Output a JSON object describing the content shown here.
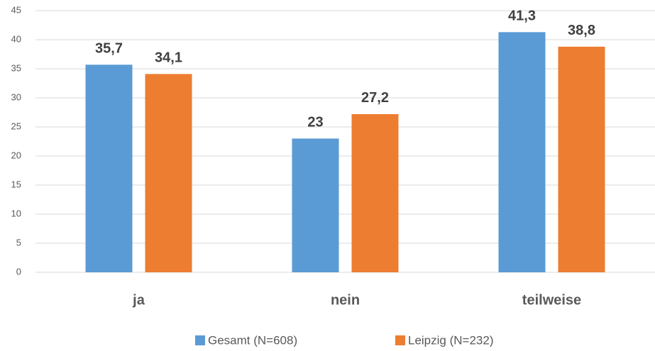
{
  "chart_data": {
    "type": "bar",
    "categories": [
      "ja",
      "nein",
      "teilweise"
    ],
    "series": [
      {
        "name": "Gesamt (N=608)",
        "color": "#5b9bd5",
        "values": [
          35.7,
          23,
          41.3
        ],
        "value_labels": [
          "35,7",
          "23",
          "41,3"
        ]
      },
      {
        "name": "Leipzig (N=232)",
        "color": "#ed7d31",
        "values": [
          34.1,
          27.2,
          38.8
        ],
        "value_labels": [
          "34,1",
          "27,2",
          "38,8"
        ]
      }
    ],
    "ylim": [
      0,
      45
    ],
    "yticks": [
      0,
      5,
      10,
      15,
      20,
      25,
      30,
      35,
      40,
      45
    ],
    "grid": true,
    "legend": "bottom"
  }
}
